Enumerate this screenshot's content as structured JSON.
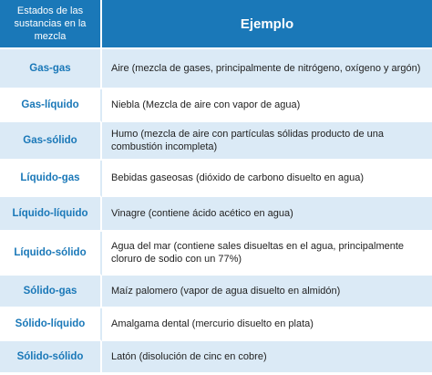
{
  "header": {
    "col_state": "Estados de las sustancias en la mezcla",
    "col_example": "Ejemplo"
  },
  "rows": [
    {
      "state": "Gas-gas",
      "example": "Aire (mezcla de gases, principalmente de nitrógeno, oxígeno y argón)"
    },
    {
      "state": "Gas-líquido",
      "example": "Niebla (Mezcla de aire con vapor de agua)"
    },
    {
      "state": "Gas-sólido",
      "example": "Humo (mezcla de aire con partículas sólidas producto de una combustión incompleta)"
    },
    {
      "state": "Líquido-gas",
      "example": "Bebidas gaseosas (dióxido de carbono disuelto en agua)"
    },
    {
      "state": "Líquido-líquido",
      "example": "Vinagre (contiene ácido acético en agua)"
    },
    {
      "state": "Líquido-sólido",
      "example": "Agua del mar (contiene sales disueltas en el agua, principalmente cloruro de sodio con un 77%)"
    },
    {
      "state": "Sólido-gas",
      "example": "Maíz palomero (vapor de agua disuelto en almidón)"
    },
    {
      "state": "Sólido-líquido",
      "example": "Amalgama dental (mercurio disuelto en plata)"
    },
    {
      "state": "Sólido-sólido",
      "example": "Latón (disolución de cinc en cobre)"
    }
  ],
  "colors": {
    "header_bg": "#1a78b8",
    "state_text": "#1a78b8",
    "alt_row_bg": "#dbeaf6"
  }
}
